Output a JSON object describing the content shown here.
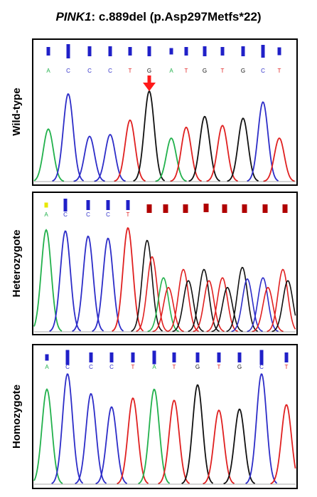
{
  "title": {
    "gene": "PINK1",
    "variant": ": c.889del (p.Asp297Metfs*22)"
  },
  "colors": {
    "A": "#22b14c",
    "C": "#2d2dc8",
    "G": "#111111",
    "T": "#e02020",
    "N": "#c00000",
    "arrow": "#ff1a1a",
    "frame": "#000000"
  },
  "panels": [
    {
      "label": "Wild-type",
      "bases": [
        "A",
        "C",
        "C",
        "C",
        "T",
        "G",
        "A",
        "T",
        "G",
        "T",
        "G",
        "C",
        "T"
      ],
      "base_letters": [
        "A",
        "C",
        "C",
        "C",
        "T",
        "G",
        "A",
        "T",
        "G",
        "T",
        "G",
        "C",
        "T"
      ],
      "arrow_at_index": 5
    },
    {
      "label": "Heterozygote",
      "bases": [
        "A",
        "C",
        "C",
        "C",
        "T",
        "N",
        "N",
        "N",
        "N",
        "N",
        "N",
        "N",
        "N"
      ],
      "base_letters": [
        "A",
        "C",
        "C",
        "C",
        "T",
        "N",
        "N",
        "N",
        "N",
        "N",
        "N",
        "N",
        "N"
      ],
      "arrow_at_index": null
    },
    {
      "label": "Homozygote",
      "bases": [
        "A",
        "C",
        "C",
        "C",
        "T",
        "A",
        "T",
        "G",
        "T",
        "G",
        "C",
        "T"
      ],
      "base_letters": [
        "A",
        "C",
        "C",
        "C",
        "T",
        "A",
        "T",
        "G",
        "T",
        "G",
        "C",
        "T"
      ],
      "arrow_at_index": null
    }
  ]
}
